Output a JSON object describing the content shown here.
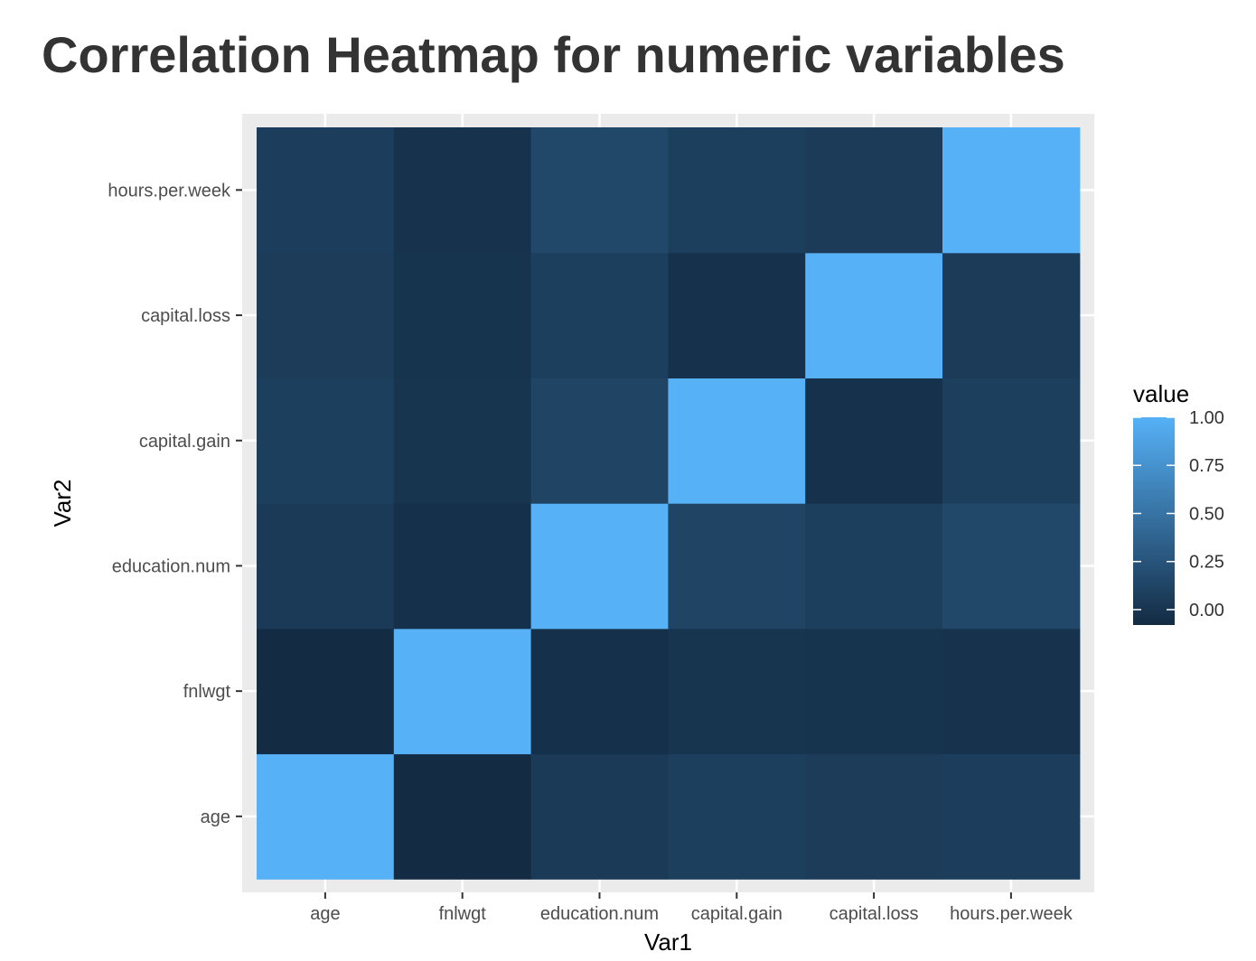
{
  "chart_data": {
    "type": "heatmap",
    "title": "Correlation Heatmap for numeric variables",
    "xlabel": "Var1",
    "ylabel": "Var2",
    "x_categories": [
      "age",
      "fnlwgt",
      "education.num",
      "capital.gain",
      "capital.loss",
      "hours.per.week"
    ],
    "y_categories": [
      "age",
      "fnlwgt",
      "education.num",
      "capital.gain",
      "capital.loss",
      "hours.per.week"
    ],
    "values": [
      [
        1.0,
        -0.08,
        0.04,
        0.08,
        0.06,
        0.07
      ],
      [
        -0.08,
        1.0,
        -0.04,
        0.0,
        -0.01,
        -0.02
      ],
      [
        0.04,
        -0.04,
        1.0,
        0.12,
        0.08,
        0.15
      ],
      [
        0.08,
        0.0,
        0.12,
        1.0,
        -0.03,
        0.08
      ],
      [
        0.06,
        -0.01,
        0.08,
        -0.03,
        1.0,
        0.05
      ],
      [
        0.07,
        -0.02,
        0.15,
        0.08,
        0.05,
        1.0
      ]
    ],
    "legend": {
      "title": "value",
      "position": "right",
      "breaks": [
        0.0,
        0.25,
        0.5,
        0.75,
        1.0
      ],
      "labels": [
        "0.00",
        "0.25",
        "0.50",
        "0.75",
        "1.00"
      ],
      "min": -0.08,
      "max": 1.0,
      "low_color": "#132B43",
      "high_color": "#56B1F7"
    },
    "panel_background": "#EBEBEB",
    "grid": true
  }
}
